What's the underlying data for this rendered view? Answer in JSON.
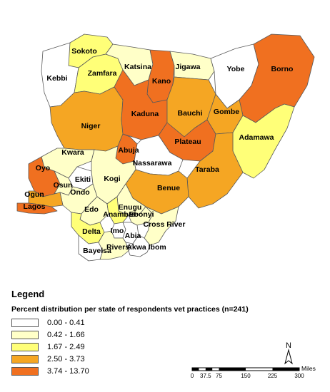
{
  "legend": {
    "title": "Legend",
    "subtitle": "Percent distribution per state of respondents vet practices (n=241)",
    "classes": [
      {
        "label": "0.00 - 0.41",
        "color": "#ffffff"
      },
      {
        "label": "0.42 - 1.66",
        "color": "#ffffc8"
      },
      {
        "label": "1.67 - 2.49",
        "color": "#ffff78"
      },
      {
        "label": "2.50 - 3.73",
        "color": "#f5a623"
      },
      {
        "label": "3.74 - 13.70",
        "color": "#f07020"
      }
    ]
  },
  "states": [
    {
      "name": "Sokoto",
      "class": 2
    },
    {
      "name": "Kebbi",
      "class": 0
    },
    {
      "name": "Zamfara",
      "class": 2
    },
    {
      "name": "Katsina",
      "class": 1
    },
    {
      "name": "Kano",
      "class": 4
    },
    {
      "name": "Jigawa",
      "class": 1
    },
    {
      "name": "Yobe",
      "class": 0
    },
    {
      "name": "Borno",
      "class": 4
    },
    {
      "name": "Niger",
      "class": 3
    },
    {
      "name": "Kaduna",
      "class": 4
    },
    {
      "name": "Bauchi",
      "class": 3
    },
    {
      "name": "Gombe",
      "class": 3
    },
    {
      "name": "Adamawa",
      "class": 2
    },
    {
      "name": "Kwara",
      "class": 1
    },
    {
      "name": "Abuja",
      "class": 4
    },
    {
      "name": "Plateau",
      "class": 4
    },
    {
      "name": "Nassarawa",
      "class": 0
    },
    {
      "name": "Taraba",
      "class": 3
    },
    {
      "name": "Oyo",
      "class": 4
    },
    {
      "name": "Ekiti",
      "class": 0
    },
    {
      "name": "Osun",
      "class": 1
    },
    {
      "name": "Kogi",
      "class": 1
    },
    {
      "name": "Benue",
      "class": 3
    },
    {
      "name": "Ondo",
      "class": 1
    },
    {
      "name": "Ogun",
      "class": 3
    },
    {
      "name": "Lagos",
      "class": 4
    },
    {
      "name": "Edo",
      "class": 1
    },
    {
      "name": "Enugu",
      "class": 1
    },
    {
      "name": "Anambra",
      "class": 2
    },
    {
      "name": "Ebonyi",
      "class": 1
    },
    {
      "name": "Delta",
      "class": 2
    },
    {
      "name": "Imo",
      "class": 0
    },
    {
      "name": "Cross River",
      "class": 1
    },
    {
      "name": "Abia",
      "class": 0
    },
    {
      "name": "Bayelsa",
      "class": 0
    },
    {
      "name": "Rivers",
      "class": 1
    },
    {
      "name": "Akwa Ibom",
      "class": 0
    }
  ],
  "north_arrow": {
    "label": "N"
  },
  "scale_bar": {
    "unit": "Miles",
    "ticks": [
      "0",
      "37.5",
      "75",
      "150",
      "225",
      "300"
    ]
  }
}
